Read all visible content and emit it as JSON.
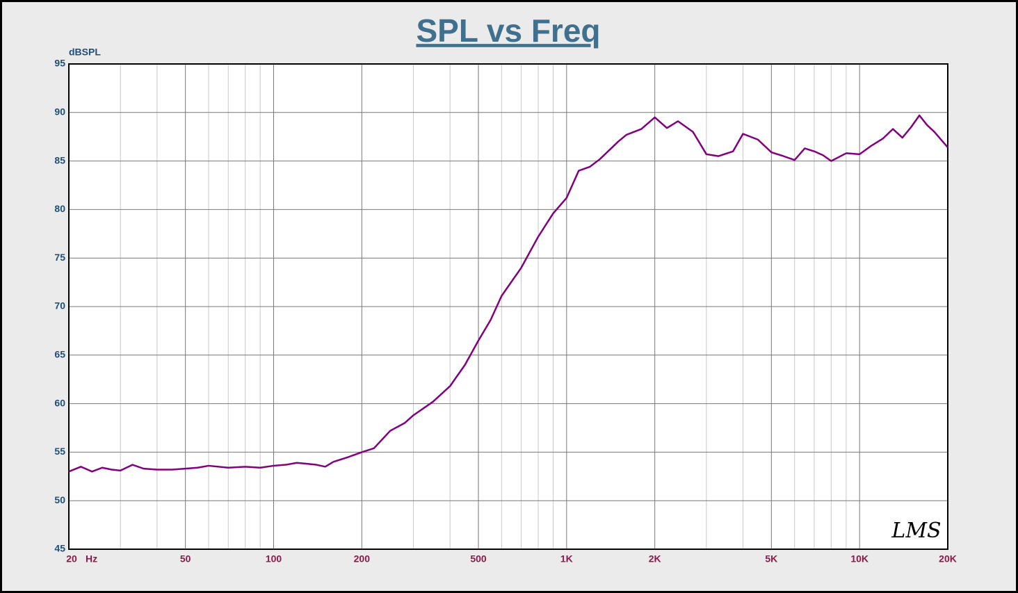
{
  "chart_data": {
    "type": "line",
    "title": "SPL vs Freq",
    "y_label": "dBSPL",
    "x_label": "Hz",
    "watermark": "LMS",
    "log_x": true,
    "grid": true,
    "xlim": [
      20,
      20000
    ],
    "ylim": [
      45,
      95
    ],
    "xticks": [
      20,
      50,
      100,
      200,
      500,
      {
        "value": 1000,
        "label": "1K"
      },
      {
        "value": 2000,
        "label": "2K"
      },
      {
        "value": 5000,
        "label": "5K"
      },
      {
        "value": 10000,
        "label": "10K"
      },
      {
        "value": 20000,
        "label": "20K"
      }
    ],
    "x_minor_ticks": [
      30,
      40,
      60,
      70,
      80,
      90,
      300,
      400,
      600,
      700,
      800,
      900,
      3000,
      4000,
      6000,
      7000,
      8000,
      9000
    ],
    "yticks": [
      45,
      50,
      55,
      60,
      65,
      70,
      75,
      80,
      85,
      90,
      95
    ],
    "x": [
      20,
      22,
      24,
      26,
      28,
      30,
      33,
      36,
      40,
      45,
      50,
      55,
      60,
      70,
      80,
      90,
      100,
      110,
      120,
      130,
      140,
      150,
      160,
      180,
      200,
      220,
      250,
      280,
      300,
      350,
      400,
      450,
      500,
      550,
      600,
      700,
      800,
      900,
      1000,
      1100,
      1200,
      1300,
      1500,
      1600,
      1800,
      2000,
      2200,
      2400,
      2700,
      3000,
      3300,
      3700,
      4000,
      4500,
      5000,
      5500,
      6000,
      6500,
      7000,
      7500,
      8000,
      9000,
      10000,
      11000,
      12000,
      13000,
      14000,
      15000,
      16000,
      17000,
      18000,
      20000
    ],
    "series": [
      {
        "name": "SPL",
        "color": "#800080",
        "values": [
          53.0,
          53.5,
          53.0,
          53.4,
          53.2,
          53.1,
          53.7,
          53.3,
          53.2,
          53.2,
          53.3,
          53.4,
          53.6,
          53.4,
          53.5,
          53.4,
          53.6,
          53.7,
          53.9,
          53.8,
          53.7,
          53.5,
          54.0,
          54.5,
          55.0,
          55.4,
          57.2,
          58.0,
          58.8,
          60.2,
          61.8,
          64.0,
          66.5,
          68.6,
          71.1,
          74.0,
          77.2,
          79.6,
          81.2,
          84.0,
          84.4,
          85.2,
          87.0,
          87.7,
          88.3,
          89.5,
          88.4,
          89.1,
          88.0,
          85.7,
          85.5,
          86.0,
          87.8,
          87.2,
          85.9,
          85.5,
          85.1,
          86.3,
          86.0,
          85.6,
          85.0,
          85.8,
          85.7,
          86.6,
          87.3,
          88.3,
          87.4,
          88.5,
          89.7,
          88.7,
          88.0,
          86.4
        ]
      }
    ]
  }
}
